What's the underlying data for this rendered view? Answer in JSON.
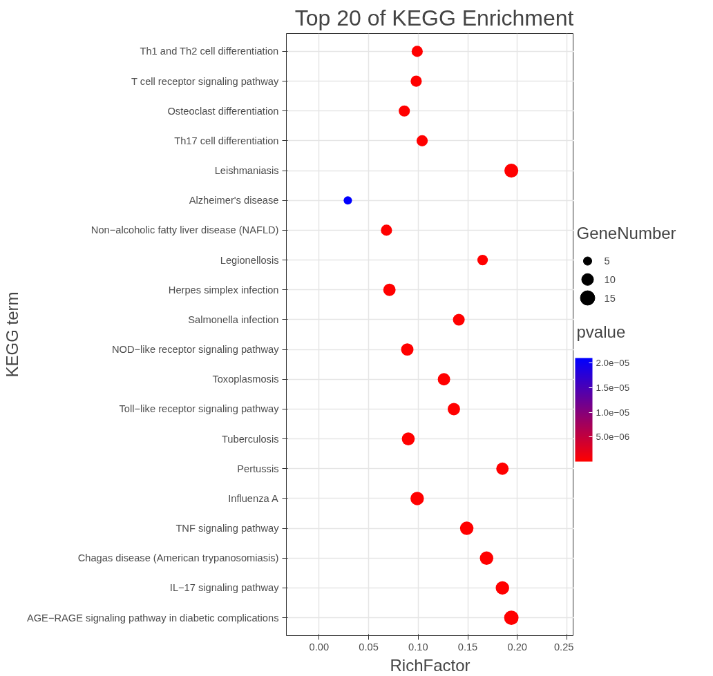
{
  "chart_data": {
    "type": "bubble",
    "title": "Top 20 of KEGG Enrichment",
    "xlabel": "RichFactor",
    "ylabel": "KEGG term",
    "legend_title": "GeneNumber",
    "clabel": "pvalue",
    "categories": [
      "Th1 and Th2 cell differentiation",
      "T cell receptor signaling pathway",
      "Osteoclast differentiation",
      "Th17 cell differentiation",
      "Leishmaniasis",
      "Alzheimer's disease",
      "Non−alcoholic fatty liver disease (NAFLD)",
      "Legionellosis",
      "Herpes simplex infection",
      "Salmonella infection",
      "NOD−like receptor signaling pathway",
      "Toxoplasmosis",
      "Toll−like receptor signaling pathway",
      "Tuberculosis",
      "Pertussis",
      "Influenza A",
      "TNF signaling pathway",
      "Chagas disease (American trypanosomiasis)",
      "IL−17 signaling pathway",
      "AGE−RAGE signaling pathway in diabetic complications"
    ],
    "values": [
      0.099,
      0.098,
      0.086,
      0.104,
      0.194,
      0.029,
      0.068,
      0.165,
      0.071,
      0.141,
      0.089,
      0.126,
      0.136,
      0.09,
      0.185,
      0.099,
      0.149,
      0.169,
      0.185,
      0.194
    ],
    "sizes": [
      9,
      9,
      9,
      9,
      14,
      5,
      9,
      8,
      11,
      10,
      11,
      11,
      11,
      12,
      11,
      13,
      13,
      13,
      13,
      15
    ],
    "cvalues": [
      0,
      0,
      0,
      0,
      0,
      2.09e-05,
      0,
      0,
      0,
      0,
      0,
      0,
      0,
      0,
      0,
      0,
      0,
      0,
      0,
      0
    ],
    "size_legend": [
      5,
      10,
      15
    ],
    "clim": [
      0,
      2.1e-05
    ],
    "cticks": [
      {
        "value": 5e-06,
        "label": "5.0e−06"
      },
      {
        "value": 1e-05,
        "label": "1.0e−05"
      },
      {
        "value": 1.5e-05,
        "label": "1.5e−05"
      },
      {
        "value": 2e-05,
        "label": "2.0e−05"
      }
    ],
    "xlim": [
      -0.033,
      0.257
    ],
    "xticks": [
      {
        "value": 0,
        "label": "0.00"
      },
      {
        "value": 0.05,
        "label": "0.05"
      },
      {
        "value": 0.1,
        "label": "0.10"
      },
      {
        "value": 0.15,
        "label": "0.15"
      },
      {
        "value": 0.2,
        "label": "0.20"
      },
      {
        "value": 0.25,
        "label": "0.25"
      }
    ],
    "grid": true,
    "marker": "circle",
    "orientation": "horizontal"
  }
}
